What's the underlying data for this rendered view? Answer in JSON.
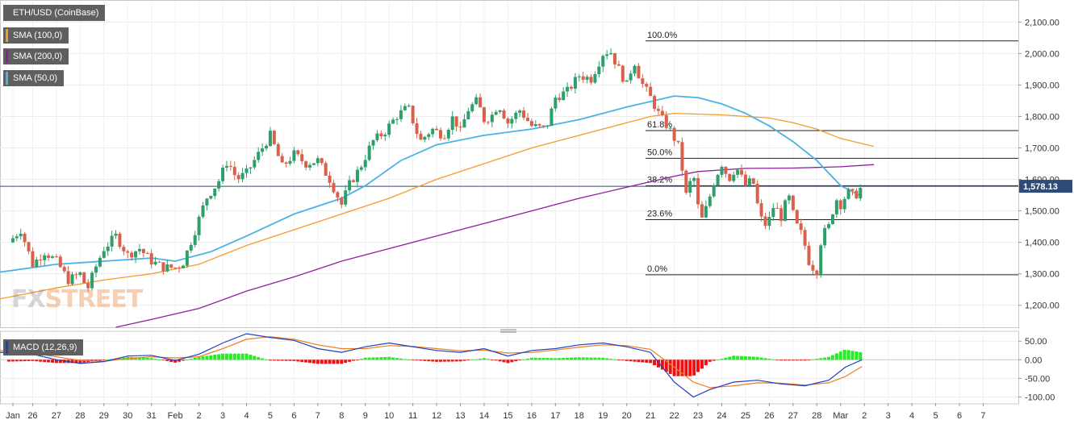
{
  "chart_data": [
    {
      "type": "candlestick",
      "title": "ETH/USD (CoinBase)",
      "indicators": [
        {
          "name": "SMA (100,0)",
          "color": "#f39c2a"
        },
        {
          "name": "SMA (200,0)",
          "color": "#8e1f9c"
        },
        {
          "name": "SMA (50,0)",
          "color": "#4ab3e6"
        }
      ],
      "y_ticks": [
        "2,100.00",
        "2,000.00",
        "1,900.00",
        "1,800.00",
        "1,700.00",
        "1,600.00",
        "1,500.00",
        "1,400.00",
        "1,300.00",
        "1,200.00"
      ],
      "y_range": [
        1130,
        2165
      ],
      "current_price": {
        "label": "1,578.13",
        "value": 1578.13,
        "color": "#2e4a78"
      },
      "fibonacci": [
        {
          "label": "100.0%",
          "value": 2040
        },
        {
          "label": "61.8%",
          "value": 1755
        },
        {
          "label": "50.0%",
          "value": 1667
        },
        {
          "label": "38.2%",
          "value": 1580
        },
        {
          "label": "23.6%",
          "value": 1472
        },
        {
          "label": "0.0%",
          "value": 1297
        }
      ],
      "x_ticks": [
        "Jan",
        "26",
        "27",
        "28",
        "29",
        "30",
        "31",
        "Feb",
        "2",
        "3",
        "4",
        "5",
        "6",
        "7",
        "8",
        "9",
        "10",
        "11",
        "12",
        "13",
        "14",
        "15",
        "16",
        "17",
        "18",
        "19",
        "20",
        "21",
        "22",
        "23",
        "24",
        "25",
        "26",
        "27",
        "28",
        "Mar",
        "2",
        "3",
        "4",
        "5",
        "6",
        "7"
      ],
      "up_color": "#2e9e6b",
      "down_color": "#d9604a",
      "grid": true,
      "watermark": {
        "part1": "FX",
        "part2": "STREET"
      }
    },
    {
      "type": "macd",
      "title": "MACD (12,26,9)",
      "y_ticks": [
        "50.00",
        "0.00",
        "-50.00",
        "-100.00"
      ],
      "y_range": [
        -112,
        70
      ],
      "macd_color": "#1f3fbf",
      "signal_color": "#ee7d22",
      "hist_up_color": "#22ee22",
      "hist_down_color": "#ee1111"
    }
  ]
}
